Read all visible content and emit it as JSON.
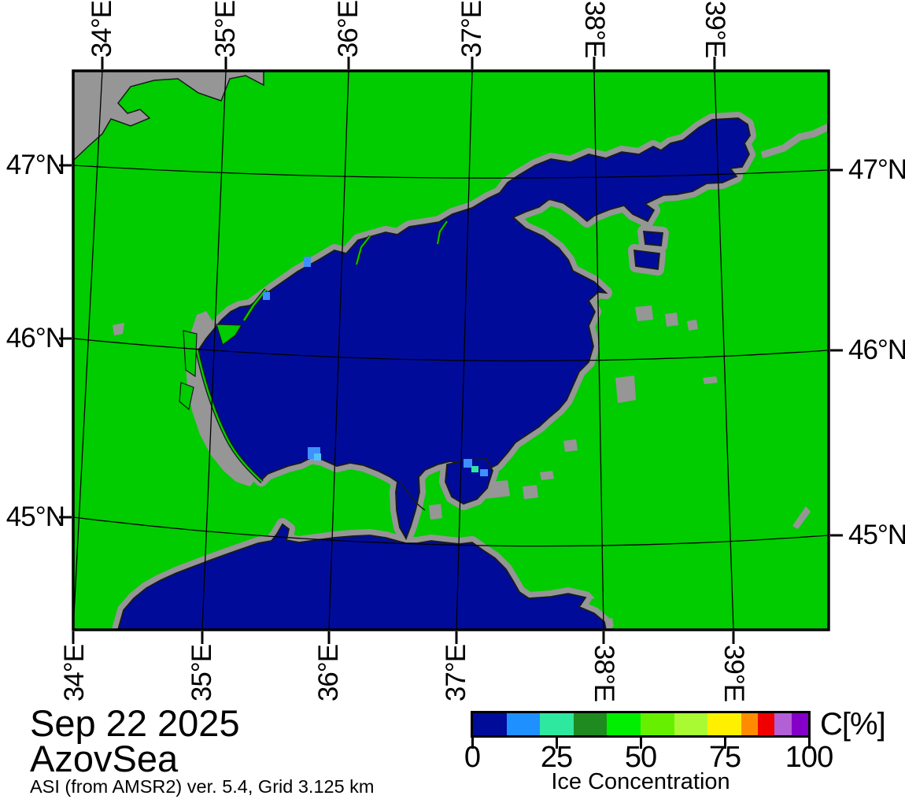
{
  "header": {
    "date": "Sep 22 2025",
    "region": "AzovSea",
    "product_note": "ASI (from AMSR2) ver. 5.4,  Grid 3.125 km"
  },
  "axes": {
    "lon": [
      "34°E",
      "35°E",
      "36°E",
      "37°E",
      "38°E",
      "39°E"
    ],
    "lat": [
      "47°N",
      "46°N",
      "45°N"
    ]
  },
  "colorbar": {
    "unit_label": "C[%]",
    "caption": "Ice Concentration",
    "tick_labels": [
      "0",
      "25",
      "50",
      "75",
      "100"
    ],
    "tick_values": [
      0,
      25,
      50,
      75,
      100
    ],
    "segments": [
      {
        "from": 0,
        "to": 10,
        "color": "#000C99"
      },
      {
        "from": 10,
        "to": 20,
        "color": "#1E90FF"
      },
      {
        "from": 20,
        "to": 30,
        "color": "#2EE8A0"
      },
      {
        "from": 30,
        "to": 40,
        "color": "#1F8A1F"
      },
      {
        "from": 40,
        "to": 50,
        "color": "#00EE00"
      },
      {
        "from": 50,
        "to": 60,
        "color": "#66F000"
      },
      {
        "from": 60,
        "to": 70,
        "color": "#AAFA33"
      },
      {
        "from": 70,
        "to": 80,
        "color": "#FFF000"
      },
      {
        "from": 80,
        "to": 85,
        "color": "#FF8C00"
      },
      {
        "from": 85,
        "to": 90,
        "color": "#F00000"
      },
      {
        "from": 90,
        "to": 95,
        "color": "#B35FD6"
      },
      {
        "from": 95,
        "to": 100,
        "color": "#8400C8"
      }
    ]
  },
  "colors": {
    "background": "#FFFFFF",
    "land": "#00CC00",
    "sea": "#000C99",
    "coast": "#969696",
    "coastline": "#1A1A1A",
    "grid": "#000000",
    "frame": "#000000",
    "ice_blue": "#3E90FF",
    "ice_lightblue": "#4FC3FF",
    "ice_teal": "#2EE8A0"
  }
}
